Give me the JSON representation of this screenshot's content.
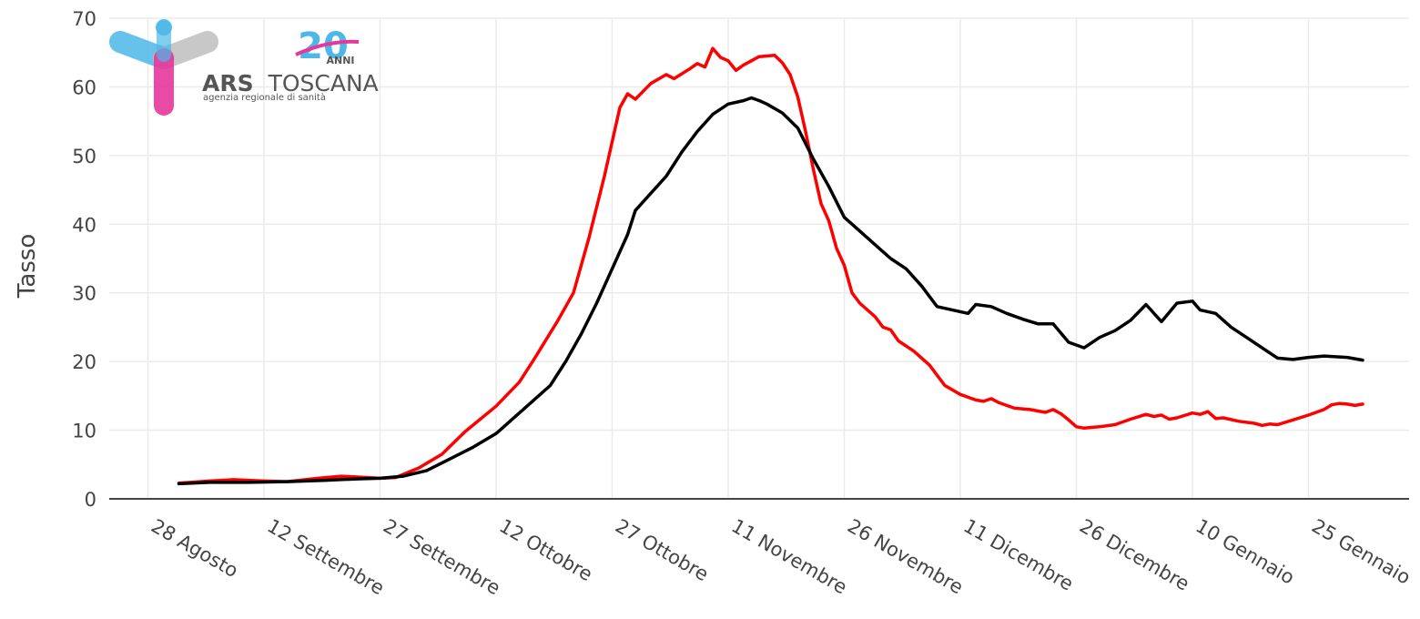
{
  "logo": {
    "name": "ARS TOSCANA",
    "name_bold": "ARS",
    "name_light": "TOSCANA",
    "subtitle": "agenzia regionale di sanità",
    "anniversary_number": "20",
    "anniversary_label": "ANNI",
    "colors": {
      "blue": "#4db8e8",
      "pink": "#e6379b",
      "gray": "#bfbfbf",
      "dark": "#555555"
    }
  },
  "chart_data": {
    "type": "line",
    "title": "",
    "xlabel": "",
    "ylabel": "Tasso",
    "ylim": [
      0,
      70
    ],
    "yticks": [
      0,
      10,
      20,
      30,
      40,
      50,
      60,
      70
    ],
    "xlim": [
      "2020-08-23",
      "2021-02-07"
    ],
    "x_tick_labels": [
      {
        "date": "2020-08-28",
        "label": "28 Agosto"
      },
      {
        "date": "2020-09-12",
        "label": "12 Settembre"
      },
      {
        "date": "2020-09-27",
        "label": "27 Settembre"
      },
      {
        "date": "2020-10-12",
        "label": "12 Ottobre"
      },
      {
        "date": "2020-10-27",
        "label": "27 Ottobre"
      },
      {
        "date": "2020-11-11",
        "label": "11 Novembre"
      },
      {
        "date": "2020-11-26",
        "label": "26 Novembre"
      },
      {
        "date": "2020-12-11",
        "label": "11 Dicembre"
      },
      {
        "date": "2020-12-26",
        "label": "26 Dicembre"
      },
      {
        "date": "2021-01-10",
        "label": "10 Gennaio"
      },
      {
        "date": "2021-01-25",
        "label": "25 Gennaio"
      }
    ],
    "grid": true,
    "legend": "none",
    "series": [
      {
        "color": "#ff0000",
        "points": [
          [
            "2020-09-01",
            2.3
          ],
          [
            "2020-09-05",
            2.6
          ],
          [
            "2020-09-08",
            2.8
          ],
          [
            "2020-09-12",
            2.6
          ],
          [
            "2020-09-15",
            2.5
          ],
          [
            "2020-09-19",
            3.0
          ],
          [
            "2020-09-22",
            3.3
          ],
          [
            "2020-09-27",
            3.0
          ],
          [
            "2020-09-29",
            3.1
          ],
          [
            "2020-10-02",
            4.5
          ],
          [
            "2020-10-05",
            6.5
          ],
          [
            "2020-10-08",
            9.8
          ],
          [
            "2020-10-12",
            13.5
          ],
          [
            "2020-10-15",
            17.0
          ],
          [
            "2020-10-17",
            20.5
          ],
          [
            "2020-10-20",
            26.0
          ],
          [
            "2020-10-22",
            30.0
          ],
          [
            "2020-10-24",
            38.0
          ],
          [
            "2020-10-26",
            47.0
          ],
          [
            "2020-10-27",
            52.0
          ],
          [
            "2020-10-28",
            57.0
          ],
          [
            "2020-10-29",
            59.0
          ],
          [
            "2020-10-30",
            58.2
          ],
          [
            "2020-11-01",
            60.5
          ],
          [
            "2020-11-03",
            61.8
          ],
          [
            "2020-11-04",
            61.2
          ],
          [
            "2020-11-06",
            62.6
          ],
          [
            "2020-11-07",
            63.4
          ],
          [
            "2020-11-08",
            62.9
          ],
          [
            "2020-11-09",
            65.6
          ],
          [
            "2020-11-10",
            64.3
          ],
          [
            "2020-11-11",
            63.8
          ],
          [
            "2020-11-12",
            62.4
          ],
          [
            "2020-11-13",
            63.2
          ],
          [
            "2020-11-15",
            64.4
          ],
          [
            "2020-11-17",
            64.6
          ],
          [
            "2020-11-18",
            63.5
          ],
          [
            "2020-11-19",
            61.8
          ],
          [
            "2020-11-20",
            58.5
          ],
          [
            "2020-11-21",
            53.5
          ],
          [
            "2020-11-22",
            48.0
          ],
          [
            "2020-11-23",
            43.0
          ],
          [
            "2020-11-24",
            40.5
          ],
          [
            "2020-11-25",
            36.5
          ],
          [
            "2020-11-26",
            34.0
          ],
          [
            "2020-11-27",
            30.0
          ],
          [
            "2020-11-28",
            28.5
          ],
          [
            "2020-11-30",
            26.5
          ],
          [
            "2020-12-01",
            25.0
          ],
          [
            "2020-12-02",
            24.6
          ],
          [
            "2020-12-03",
            23.0
          ],
          [
            "2020-12-05",
            21.5
          ],
          [
            "2020-12-07",
            19.5
          ],
          [
            "2020-12-09",
            16.5
          ],
          [
            "2020-12-11",
            15.2
          ],
          [
            "2020-12-13",
            14.4
          ],
          [
            "2020-12-14",
            14.2
          ],
          [
            "2020-12-15",
            14.6
          ],
          [
            "2020-12-16",
            14.0
          ],
          [
            "2020-12-18",
            13.2
          ],
          [
            "2020-12-20",
            13.0
          ],
          [
            "2020-12-22",
            12.6
          ],
          [
            "2020-12-23",
            13.0
          ],
          [
            "2020-12-24",
            12.4
          ],
          [
            "2020-12-25",
            11.5
          ],
          [
            "2020-12-26",
            10.5
          ],
          [
            "2020-12-27",
            10.3
          ],
          [
            "2020-12-29",
            10.5
          ],
          [
            "2020-12-31",
            10.8
          ],
          [
            "2021-01-02",
            11.6
          ],
          [
            "2021-01-04",
            12.3
          ],
          [
            "2021-01-05",
            12.0
          ],
          [
            "2021-01-06",
            12.2
          ],
          [
            "2021-01-07",
            11.6
          ],
          [
            "2021-01-08",
            11.8
          ],
          [
            "2021-01-10",
            12.5
          ],
          [
            "2021-01-11",
            12.3
          ],
          [
            "2021-01-12",
            12.7
          ],
          [
            "2021-01-13",
            11.7
          ],
          [
            "2021-01-14",
            11.8
          ],
          [
            "2021-01-16",
            11.3
          ],
          [
            "2021-01-18",
            11.0
          ],
          [
            "2021-01-19",
            10.7
          ],
          [
            "2021-01-20",
            10.9
          ],
          [
            "2021-01-21",
            10.8
          ],
          [
            "2021-01-23",
            11.5
          ],
          [
            "2021-01-25",
            12.2
          ],
          [
            "2021-01-27",
            13.0
          ],
          [
            "2021-01-28",
            13.7
          ],
          [
            "2021-01-29",
            13.9
          ],
          [
            "2021-01-30",
            13.8
          ],
          [
            "2021-01-31",
            13.6
          ],
          [
            "2021-02-01",
            13.8
          ]
        ]
      },
      {
        "color": "#000000",
        "points": [
          [
            "2020-09-01",
            2.2
          ],
          [
            "2020-09-05",
            2.4
          ],
          [
            "2020-09-10",
            2.4
          ],
          [
            "2020-09-15",
            2.5
          ],
          [
            "2020-09-20",
            2.7
          ],
          [
            "2020-09-24",
            2.9
          ],
          [
            "2020-09-27",
            3.0
          ],
          [
            "2020-09-30",
            3.3
          ],
          [
            "2020-10-03",
            4.1
          ],
          [
            "2020-10-06",
            5.8
          ],
          [
            "2020-10-09",
            7.5
          ],
          [
            "2020-10-12",
            9.5
          ],
          [
            "2020-10-15",
            12.5
          ],
          [
            "2020-10-17",
            14.5
          ],
          [
            "2020-10-19",
            16.5
          ],
          [
            "2020-10-21",
            20.0
          ],
          [
            "2020-10-23",
            24.0
          ],
          [
            "2020-10-25",
            28.5
          ],
          [
            "2020-10-27",
            33.5
          ],
          [
            "2020-10-29",
            38.5
          ],
          [
            "2020-10-30",
            42.0
          ],
          [
            "2020-11-01",
            44.5
          ],
          [
            "2020-11-03",
            47.0
          ],
          [
            "2020-11-05",
            50.5
          ],
          [
            "2020-11-07",
            53.5
          ],
          [
            "2020-11-09",
            56.0
          ],
          [
            "2020-11-11",
            57.5
          ],
          [
            "2020-11-13",
            58.0
          ],
          [
            "2020-11-14",
            58.4
          ],
          [
            "2020-11-15",
            58.0
          ],
          [
            "2020-11-16",
            57.5
          ],
          [
            "2020-11-18",
            56.2
          ],
          [
            "2020-11-20",
            54.0
          ],
          [
            "2020-11-22",
            49.5
          ],
          [
            "2020-11-24",
            45.5
          ],
          [
            "2020-11-26",
            41.0
          ],
          [
            "2020-11-28",
            39.0
          ],
          [
            "2020-11-30",
            37.0
          ],
          [
            "2020-12-02",
            35.0
          ],
          [
            "2020-12-04",
            33.5
          ],
          [
            "2020-12-06",
            31.0
          ],
          [
            "2020-12-08",
            28.0
          ],
          [
            "2020-12-10",
            27.5
          ],
          [
            "2020-12-12",
            27.0
          ],
          [
            "2020-12-13",
            28.3
          ],
          [
            "2020-12-15",
            28.0
          ],
          [
            "2020-12-17",
            27.0
          ],
          [
            "2020-12-19",
            26.2
          ],
          [
            "2020-12-21",
            25.5
          ],
          [
            "2020-12-23",
            25.5
          ],
          [
            "2020-12-25",
            22.8
          ],
          [
            "2020-12-27",
            22.0
          ],
          [
            "2020-12-29",
            23.5
          ],
          [
            "2020-12-31",
            24.5
          ],
          [
            "2021-01-02",
            26.0
          ],
          [
            "2021-01-04",
            28.3
          ],
          [
            "2021-01-06",
            25.8
          ],
          [
            "2021-01-08",
            28.5
          ],
          [
            "2021-01-10",
            28.8
          ],
          [
            "2021-01-11",
            27.5
          ],
          [
            "2021-01-13",
            27.0
          ],
          [
            "2021-01-15",
            25.0
          ],
          [
            "2021-01-17",
            23.5
          ],
          [
            "2021-01-19",
            22.0
          ],
          [
            "2021-01-21",
            20.5
          ],
          [
            "2021-01-23",
            20.3
          ],
          [
            "2021-01-25",
            20.6
          ],
          [
            "2021-01-27",
            20.8
          ],
          [
            "2021-01-30",
            20.6
          ],
          [
            "2021-02-01",
            20.2
          ]
        ]
      }
    ]
  }
}
